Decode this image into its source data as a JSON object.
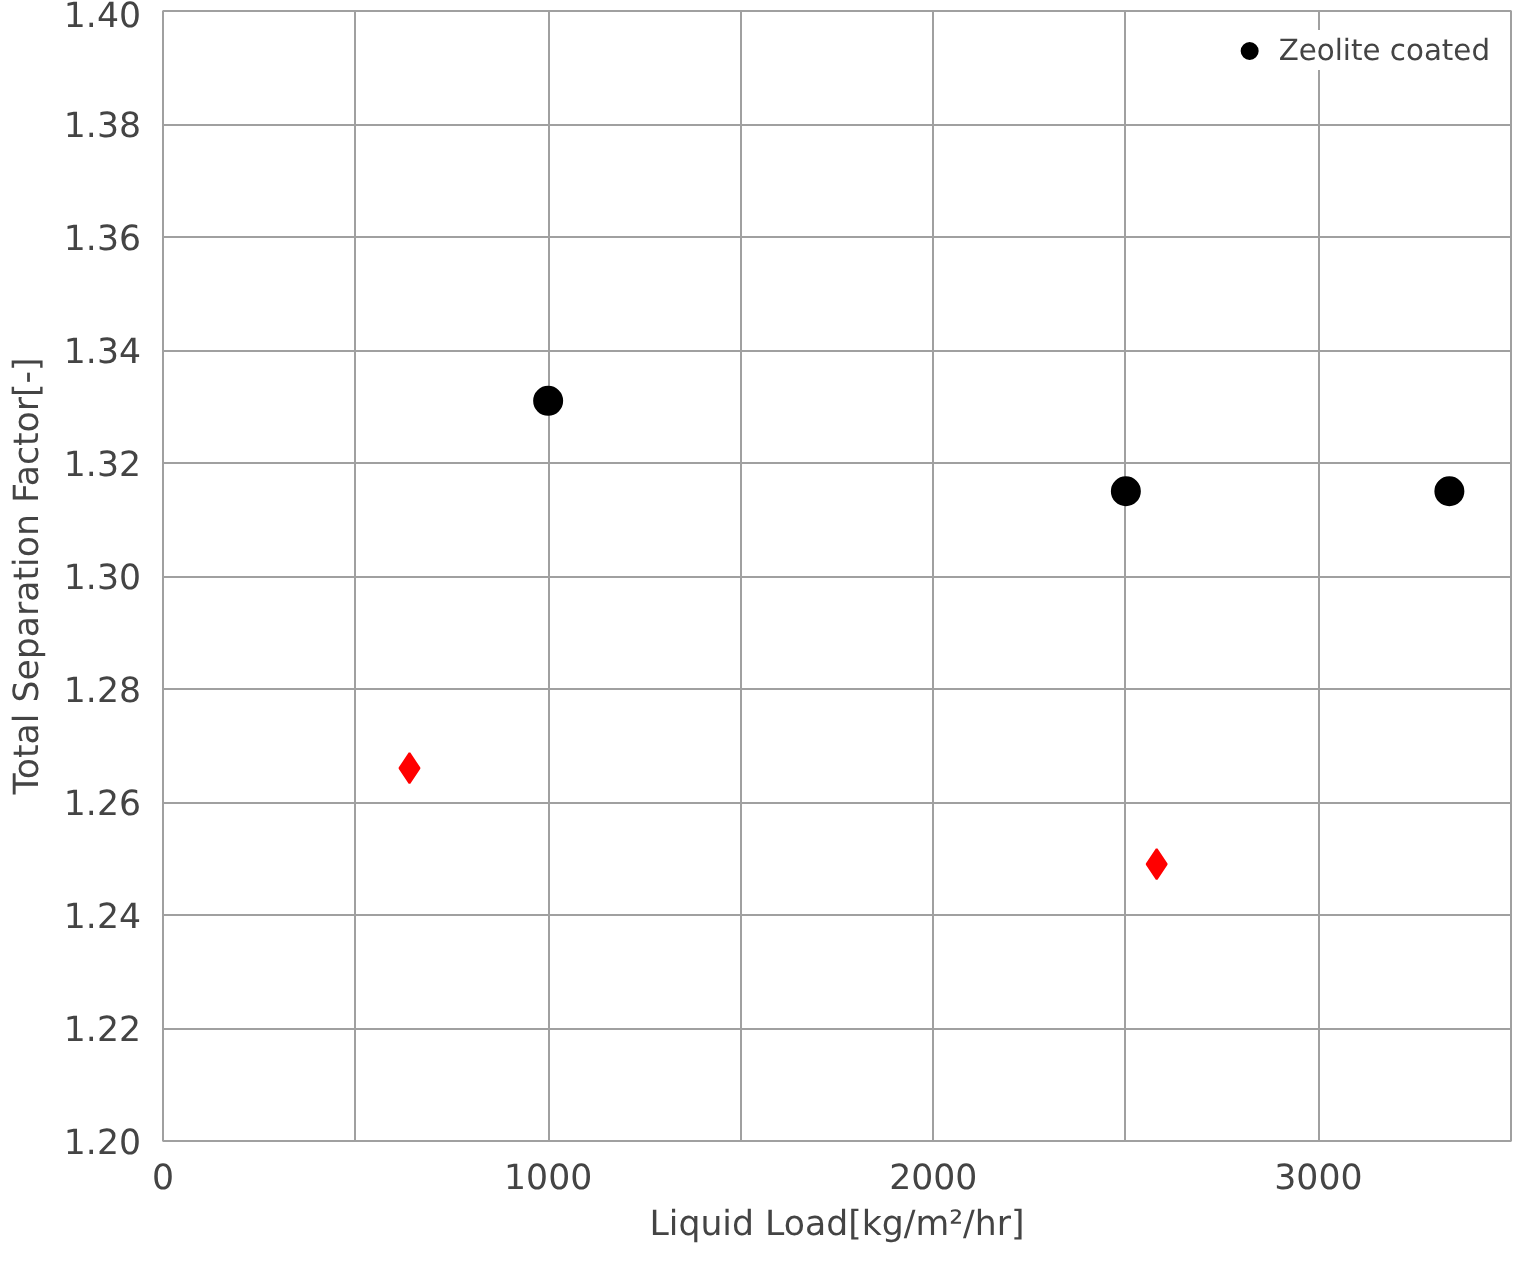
{
  "chart_data": {
    "type": "scatter",
    "xlabel": "Liquid Load[kg/m²/hr]",
    "ylabel": "Total Separation Factor[-]",
    "xlim": [
      0,
      3500
    ],
    "xticks": [
      0,
      {
        "value": 500,
        "label": null
      },
      1000,
      {
        "value": 1500,
        "label": null
      },
      2000,
      {
        "value": 2500,
        "label": null
      },
      3000,
      {
        "value": 3500,
        "label": null
      }
    ],
    "ylim": [
      1.2,
      1.4
    ],
    "yticks": [
      {
        "value": 1.2,
        "label": "1.20"
      },
      1.22,
      1.24,
      1.26,
      1.28,
      {
        "value": 1.3,
        "label": "1.30"
      },
      1.32,
      1.34,
      1.36,
      1.38,
      {
        "value": 1.4,
        "label": "1.40"
      }
    ],
    "grid": true,
    "legend": "top right",
    "series": [
      {
        "color": "#ff0000",
        "marker": "diamond",
        "x": [
          640,
          2580
        ],
        "values": [
          1.266,
          1.249
        ]
      },
      {
        "name": "Zeolite coated",
        "color": "#000000",
        "marker": "circle",
        "x": [
          1000,
          2500,
          3340
        ],
        "values": [
          1.331,
          1.315,
          1.315
        ]
      }
    ]
  }
}
